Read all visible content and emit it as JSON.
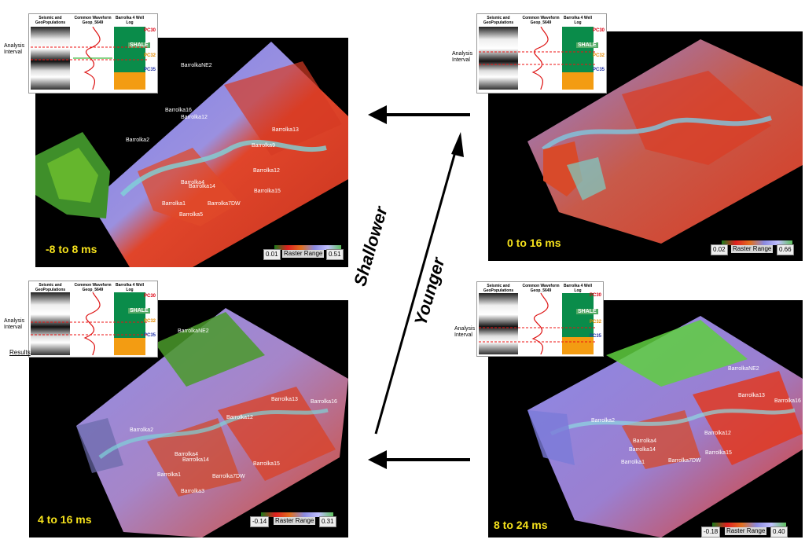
{
  "panels": [
    {
      "id": "top-left",
      "time_label": "-8 to 8 ms",
      "raster": {
        "min": "0.01",
        "label": "Raster Range",
        "max": "0.51"
      },
      "wells": [
        "BarrolkaNE2",
        "Barrolka16",
        "Barrolka12",
        "Barrolka13",
        "Barrolka9",
        "Barrolka2",
        "Barrolka12",
        "Barrolka14",
        "Barrolka15",
        "Barrolka1",
        "Barrolka7DW",
        "Barrolka5",
        "Barrolka4"
      ]
    },
    {
      "id": "top-right",
      "time_label": "0 to 16 ms",
      "raster": {
        "min": "0.02",
        "label": "Raster Range",
        "max": "0.66"
      },
      "wells": []
    },
    {
      "id": "bottom-left",
      "time_label": "4 to 16 ms",
      "raster": {
        "min": "-0.14",
        "label": "Raster Range",
        "max": "0.31"
      },
      "wells": [
        "BarrolkaNE2",
        "Barrolka13",
        "Barrolka16",
        "Barrolka12",
        "Barrolka2",
        "Barrolka14",
        "Barrolka15",
        "Barrolka1",
        "Barrolka7DW",
        "Barrolka4",
        "Barrolka3"
      ]
    },
    {
      "id": "bottom-right",
      "time_label": "8 to 24 ms",
      "raster": {
        "min": "-0.18",
        "label": "Raster Range",
        "max": "0.40"
      },
      "wells": [
        "BarrolkaNE2",
        "Barrolka13",
        "Barrolka16",
        "Barrolka2",
        "Barrolka12",
        "Barrolka14",
        "Barrolka15",
        "Barrolka1",
        "Barrolka7DW",
        "Barrolka4"
      ]
    }
  ],
  "inset": {
    "col1": "Seismic and GeoPopulations",
    "col2": "Common Waveform Geop_5649",
    "col3": "Barrolka 4 Well Log",
    "shale": "SHALE",
    "pc30": "PC30",
    "pc32": "PC32",
    "pc35": "PC35",
    "analysis": "Analysis Interval"
  },
  "results_label": "Results",
  "center": {
    "line1": "Shallower",
    "line2": "Younger"
  },
  "colors": {
    "gold": "#f6e21c",
    "arrow": "#000000"
  }
}
